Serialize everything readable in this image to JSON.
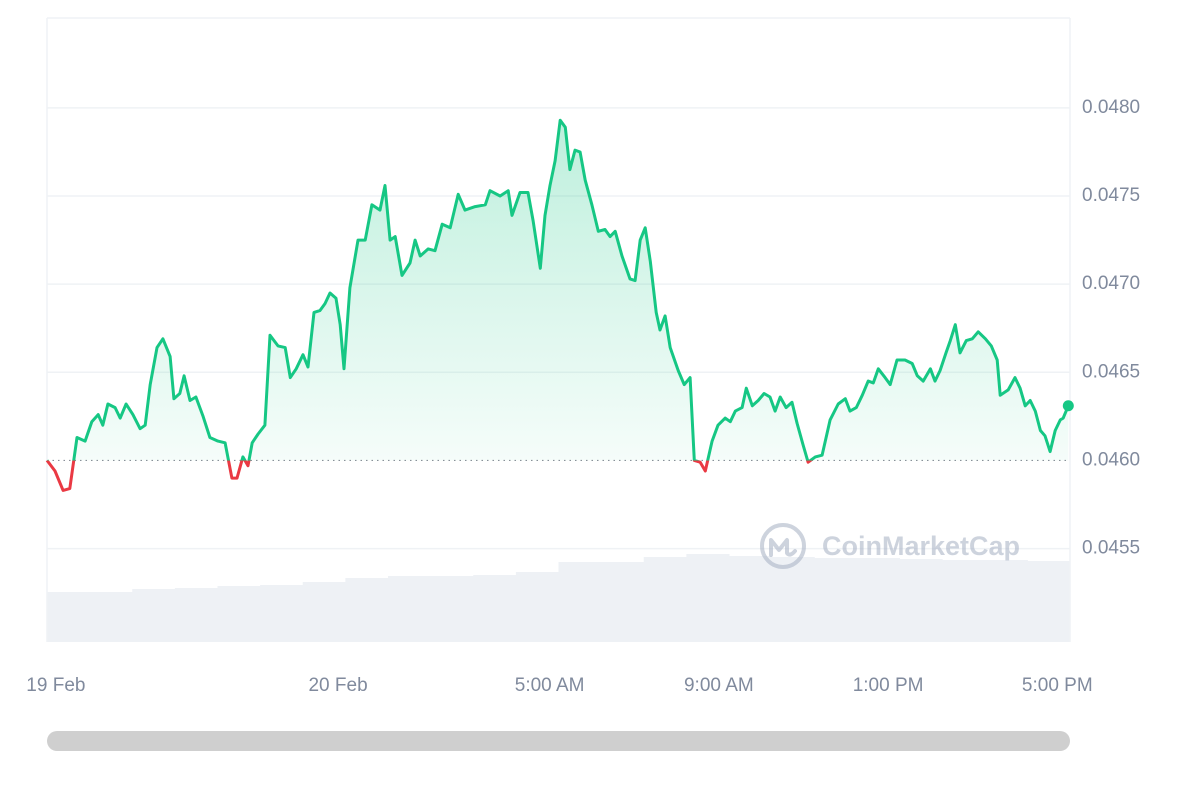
{
  "chart_data": {
    "type": "line",
    "watermark": "CoinMarketCap",
    "x": [
      -6.88,
      -6.69,
      -6.5,
      -6.34,
      -6.17,
      -5.98,
      -5.82,
      -5.67,
      -5.56,
      -5.44,
      -5.27,
      -5.15,
      -5.01,
      -4.85,
      -4.68,
      -4.56,
      -4.44,
      -4.28,
      -4.14,
      -3.97,
      -3.88,
      -3.74,
      -3.64,
      -3.5,
      -3.36,
      -3.19,
      -3.03,
      -2.84,
      -2.67,
      -2.51,
      -2.39,
      -2.25,
      -2.13,
      -2.03,
      -1.89,
      -1.73,
      -1.61,
      -1.42,
      -1.25,
      -1.13,
      -0.99,
      -0.83,
      -0.71,
      -0.57,
      -0.43,
      -0.31,
      -0.19,
      -0.05,
      0.05,
      0.14,
      0.28,
      0.47,
      0.64,
      0.8,
      0.99,
      1.11,
      1.23,
      1.35,
      1.51,
      1.7,
      1.82,
      1.94,
      2.13,
      2.29,
      2.46,
      2.65,
      2.84,
      3.0,
      3.24,
      3.48,
      3.59,
      3.83,
      4.02,
      4.11,
      4.3,
      4.49,
      4.61,
      4.78,
      4.89,
      5.01,
      5.13,
      5.25,
      5.37,
      5.48,
      5.6,
      5.72,
      5.84,
      6.0,
      6.15,
      6.31,
      6.43,
      6.55,
      6.71,
      6.9,
      7.02,
      7.14,
      7.26,
      7.38,
      7.52,
      7.61,
      7.73,
      7.85,
      8.04,
      8.18,
      8.32,
      8.42,
      8.56,
      8.68,
      8.84,
      8.98,
      9.15,
      9.27,
      9.39,
      9.55,
      9.65,
      9.79,
      9.93,
      10.07,
      10.21,
      10.33,
      10.45,
      10.59,
      10.73,
      10.85,
      10.99,
      11.11,
      11.28,
      11.44,
      11.63,
      11.82,
      11.99,
      12.1,
      12.25,
      12.39,
      12.53,
      12.65,
      12.77,
      12.93,
      13.05,
      13.21,
      13.4,
      13.57,
      13.69,
      13.83,
      14.0,
      14.11,
      14.23,
      14.37,
      14.47,
      14.59,
      14.7,
      14.85,
      14.99,
      15.13,
      15.3,
      15.44,
      15.58,
      15.65,
      15.84,
      16.0,
      16.12,
      16.24,
      16.36,
      16.48,
      16.6,
      16.71,
      16.83,
      16.95,
      17.07,
      17.14,
      17.26
    ],
    "series": [
      {
        "name": "Price",
        "color": "#16c784",
        "below_color": "#ea3943",
        "values": [
          0.046,
          0.04594,
          0.04583,
          0.04584,
          0.04613,
          0.04611,
          0.04622,
          0.04626,
          0.0462,
          0.04632,
          0.0463,
          0.04624,
          0.04632,
          0.04626,
          0.04618,
          0.0462,
          0.04643,
          0.04664,
          0.04669,
          0.04659,
          0.04635,
          0.04638,
          0.04648,
          0.04634,
          0.04636,
          0.04625,
          0.04613,
          0.04611,
          0.0461,
          0.0459,
          0.0459,
          0.04602,
          0.04597,
          0.0461,
          0.04615,
          0.0462,
          0.04671,
          0.04665,
          0.04664,
          0.04647,
          0.04652,
          0.0466,
          0.04653,
          0.04684,
          0.04685,
          0.04689,
          0.04695,
          0.04692,
          0.04677,
          0.04652,
          0.04698,
          0.04725,
          0.04725,
          0.04745,
          0.04742,
          0.04756,
          0.04725,
          0.04727,
          0.04705,
          0.04712,
          0.04725,
          0.04716,
          0.0472,
          0.04719,
          0.04734,
          0.04732,
          0.04751,
          0.04742,
          0.04744,
          0.04745,
          0.04753,
          0.0475,
          0.04753,
          0.04739,
          0.04752,
          0.04752,
          0.04736,
          0.04709,
          0.04739,
          0.04756,
          0.0477,
          0.04793,
          0.04789,
          0.04765,
          0.04776,
          0.04775,
          0.04759,
          0.04745,
          0.0473,
          0.04731,
          0.04727,
          0.0473,
          0.04716,
          0.04703,
          0.04702,
          0.04725,
          0.04732,
          0.04713,
          0.04684,
          0.04674,
          0.04682,
          0.04664,
          0.04651,
          0.04643,
          0.04647,
          0.046,
          0.04599,
          0.04594,
          0.04611,
          0.0462,
          0.04624,
          0.04622,
          0.04628,
          0.0463,
          0.04641,
          0.04631,
          0.04634,
          0.04638,
          0.04636,
          0.04628,
          0.04636,
          0.0463,
          0.04633,
          0.04621,
          0.04609,
          0.04599,
          0.04602,
          0.04603,
          0.04623,
          0.04632,
          0.04635,
          0.04628,
          0.0463,
          0.04637,
          0.04645,
          0.04644,
          0.04652,
          0.04647,
          0.04643,
          0.04657,
          0.04657,
          0.04655,
          0.04648,
          0.04645,
          0.04652,
          0.04645,
          0.04651,
          0.04661,
          0.04668,
          0.04677,
          0.04661,
          0.04668,
          0.04669,
          0.04673,
          0.04669,
          0.04665,
          0.04657,
          0.04637,
          0.0464,
          0.04647,
          0.04641,
          0.04631,
          0.04634,
          0.04628,
          0.04617,
          0.04614,
          0.04605,
          0.04617,
          0.04623,
          0.04624,
          0.04631
        ]
      }
    ],
    "baseline": 0.046,
    "volume": {
      "color": "#eef1f5",
      "values": [
        50,
        50,
        53,
        54,
        56,
        57,
        60,
        64,
        66,
        66,
        67,
        70,
        80,
        80,
        85,
        88,
        86,
        85,
        84,
        84,
        83,
        82,
        82,
        81
      ]
    },
    "xlim": [
      -6.88,
      17.3
    ],
    "xticks": [
      {
        "value": -6.67,
        "label": "19 Feb"
      },
      {
        "value": 0,
        "label": "20 Feb"
      },
      {
        "value": 5,
        "label": "5:00 AM"
      },
      {
        "value": 9,
        "label": "9:00 AM"
      },
      {
        "value": 13,
        "label": "1:00 PM"
      },
      {
        "value": 17,
        "label": "5:00 PM"
      }
    ],
    "ylim": [
      0.04497,
      0.04851
    ],
    "yticks": [
      {
        "value": 0.0455,
        "label": "0.0455"
      },
      {
        "value": 0.046,
        "label": "0.0460"
      },
      {
        "value": 0.0465,
        "label": "0.0465"
      },
      {
        "value": 0.047,
        "label": "0.0470"
      },
      {
        "value": 0.0475,
        "label": "0.0475"
      },
      {
        "value": 0.048,
        "label": "0.0480"
      }
    ],
    "grid": true
  }
}
